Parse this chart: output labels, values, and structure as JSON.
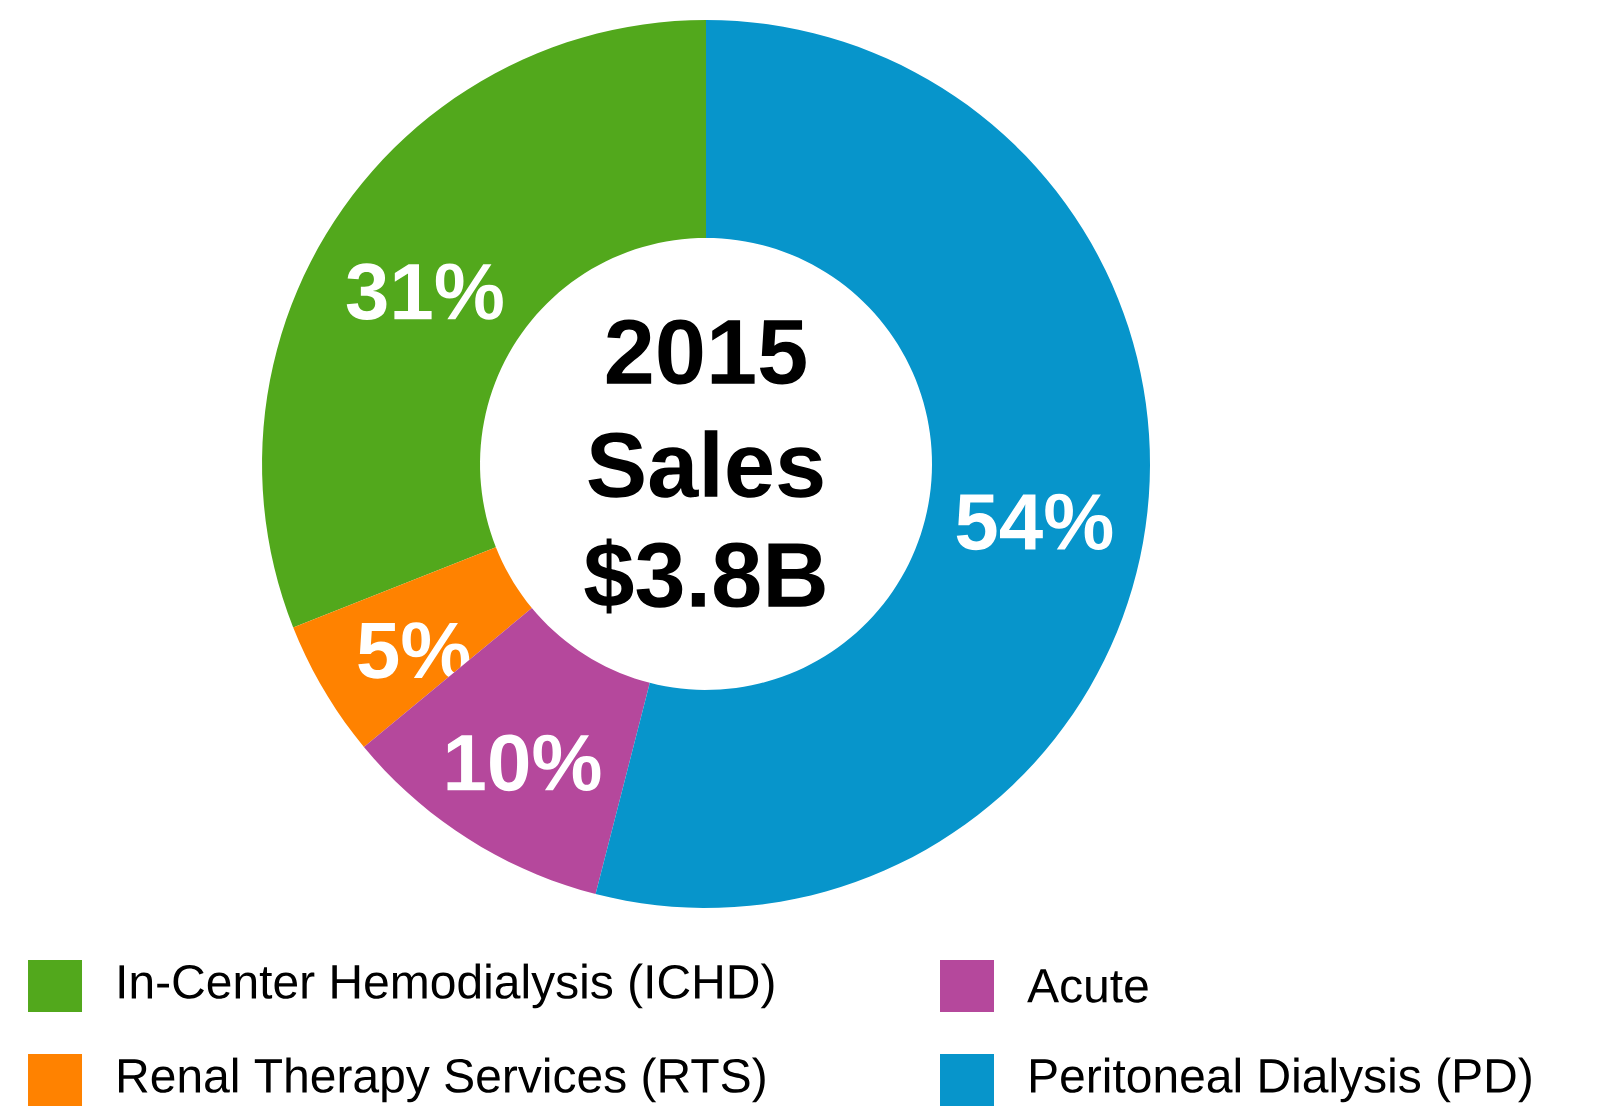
{
  "chart_data": {
    "type": "donut",
    "categories": [
      "In-Center Hemodialysis (ICHD)",
      "Renal Therapy Services (RTS)",
      "Acute",
      "Peritoneal Dialysis (PD)"
    ],
    "values": [
      31,
      5,
      10,
      54
    ],
    "colors": [
      "#52a81c",
      "#ff8200",
      "#b5489c",
      "#0795cb"
    ],
    "value_labels": [
      "31%",
      "5%",
      "10%",
      "54%"
    ],
    "annotations": [
      "2015",
      "Sales",
      "$3.8B"
    ],
    "legend": "bottom"
  }
}
